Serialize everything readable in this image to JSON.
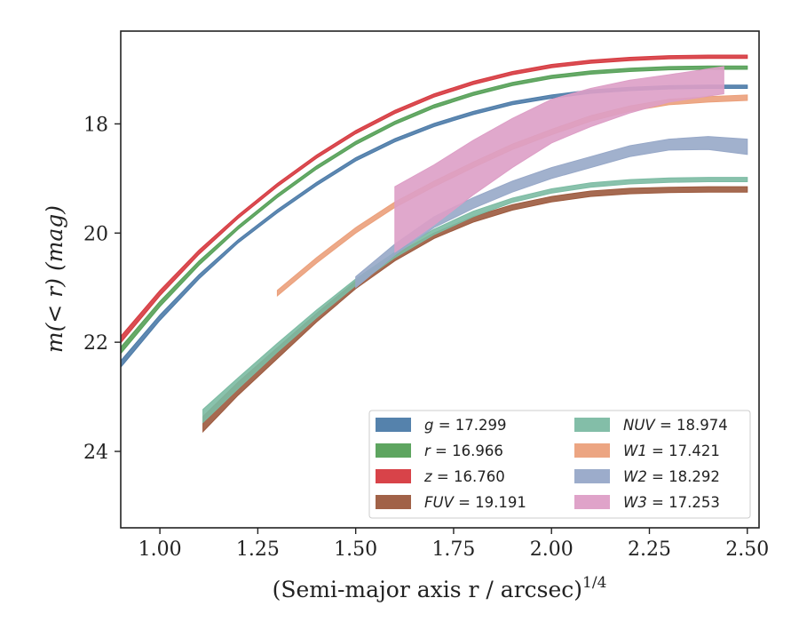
{
  "chart_data": {
    "type": "line",
    "xlabel": "(Semi-major axis r / arcsec)",
    "xlabel_exponent": "1/4",
    "ylabel": "m(< r) (mag)",
    "xlim": [
      0.9,
      2.53
    ],
    "ylim": [
      25.4,
      16.3
    ],
    "y_inverted": true,
    "x_ticks": [
      1.0,
      1.25,
      1.5,
      1.75,
      2.0,
      2.25,
      2.5
    ],
    "x_tick_labels": [
      "1.00",
      "1.25",
      "1.50",
      "1.75",
      "2.00",
      "2.25",
      "2.50"
    ],
    "y_ticks": [
      18,
      20,
      22,
      24
    ],
    "y_tick_labels": [
      "18",
      "20",
      "22",
      "24"
    ],
    "grid": false,
    "legend_placement": "lower-right",
    "legend_columns": 2,
    "series": [
      {
        "name": "g = 17.299",
        "label_var": "g",
        "label_value": "17.299",
        "color": "#4c7ba8",
        "x": [
          0.9,
          1.0,
          1.1,
          1.2,
          1.3,
          1.4,
          1.5,
          1.6,
          1.7,
          1.8,
          1.9,
          2.0,
          2.1,
          2.2,
          2.3,
          2.4,
          2.5
        ],
        "y": [
          22.4,
          21.55,
          20.8,
          20.15,
          19.6,
          19.1,
          18.65,
          18.3,
          18.02,
          17.8,
          17.62,
          17.5,
          17.41,
          17.36,
          17.33,
          17.32,
          17.32
        ],
        "half_width": [
          0.06,
          0.05,
          0.04,
          0.03,
          0.03,
          0.03,
          0.03,
          0.03,
          0.03,
          0.03,
          0.03,
          0.03,
          0.03,
          0.03,
          0.03,
          0.03,
          0.03
        ]
      },
      {
        "name": "r = 16.966",
        "label_var": "r",
        "label_value": "16.966",
        "color": "#55a057",
        "x": [
          0.9,
          1.0,
          1.1,
          1.2,
          1.3,
          1.4,
          1.5,
          1.6,
          1.7,
          1.8,
          1.9,
          2.0,
          2.1,
          2.2,
          2.3,
          2.4,
          2.5
        ],
        "y": [
          22.15,
          21.3,
          20.55,
          19.9,
          19.32,
          18.8,
          18.35,
          17.98,
          17.68,
          17.45,
          17.27,
          17.14,
          17.06,
          17.01,
          16.98,
          16.97,
          16.97
        ],
        "half_width": [
          0.06,
          0.05,
          0.04,
          0.03,
          0.03,
          0.03,
          0.03,
          0.03,
          0.03,
          0.03,
          0.03,
          0.03,
          0.03,
          0.03,
          0.03,
          0.03,
          0.03
        ]
      },
      {
        "name": "z = 16.760",
        "label_var": "z",
        "label_value": "16.760",
        "color": "#d6393f",
        "x": [
          0.9,
          1.0,
          1.1,
          1.2,
          1.3,
          1.4,
          1.5,
          1.6,
          1.7,
          1.8,
          1.9,
          2.0,
          2.1,
          2.2,
          2.3,
          2.4,
          2.5
        ],
        "y": [
          21.95,
          21.1,
          20.35,
          19.7,
          19.12,
          18.6,
          18.15,
          17.78,
          17.48,
          17.25,
          17.07,
          16.94,
          16.86,
          16.81,
          16.78,
          16.77,
          16.77
        ],
        "half_width": [
          0.06,
          0.05,
          0.04,
          0.03,
          0.03,
          0.03,
          0.03,
          0.03,
          0.03,
          0.03,
          0.03,
          0.03,
          0.03,
          0.03,
          0.03,
          0.03,
          0.03
        ]
      },
      {
        "name": "FUV = 19.191",
        "label_var": "FUV",
        "label_value": "19.191",
        "color": "#9c5a3e",
        "x": [
          1.11,
          1.2,
          1.3,
          1.4,
          1.5,
          1.6,
          1.7,
          1.8,
          1.9,
          2.0,
          2.1,
          2.2,
          2.3,
          2.4,
          2.5
        ],
        "y": [
          23.5,
          22.85,
          22.2,
          21.55,
          20.95,
          20.45,
          20.05,
          19.75,
          19.53,
          19.38,
          19.28,
          19.23,
          19.21,
          19.2,
          19.2
        ],
        "half_width": [
          0.14,
          0.12,
          0.1,
          0.08,
          0.07,
          0.06,
          0.05,
          0.05,
          0.05,
          0.05,
          0.05,
          0.05,
          0.05,
          0.05,
          0.05
        ]
      },
      {
        "name": "NUV = 18.974",
        "label_var": "NUV",
        "label_value": "18.974",
        "color": "#7cbba3",
        "x": [
          1.11,
          1.2,
          1.3,
          1.4,
          1.5,
          1.6,
          1.7,
          1.8,
          1.9,
          2.0,
          2.1,
          2.2,
          2.3,
          2.4,
          2.5
        ],
        "y": [
          23.35,
          22.75,
          22.1,
          21.48,
          20.9,
          20.4,
          19.98,
          19.65,
          19.4,
          19.23,
          19.12,
          19.06,
          19.03,
          19.02,
          19.02
        ],
        "half_width": [
          0.12,
          0.1,
          0.08,
          0.07,
          0.06,
          0.05,
          0.05,
          0.05,
          0.04,
          0.04,
          0.04,
          0.04,
          0.04,
          0.04,
          0.04
        ]
      },
      {
        "name": "W1 = 17.421",
        "label_var": "W1",
        "label_value": "17.421",
        "color": "#eba07b",
        "x": [
          1.3,
          1.4,
          1.5,
          1.6,
          1.7,
          1.8,
          1.9,
          2.0,
          2.1,
          2.2,
          2.3,
          2.4,
          2.5
        ],
        "y": [
          21.1,
          20.5,
          19.95,
          19.48,
          19.1,
          18.75,
          18.42,
          18.15,
          17.9,
          17.72,
          17.6,
          17.55,
          17.52
        ],
        "half_width": [
          0.05,
          0.05,
          0.05,
          0.05,
          0.05,
          0.05,
          0.05,
          0.05,
          0.05,
          0.05,
          0.05,
          0.05,
          0.05
        ]
      },
      {
        "name": "W2 = 18.292",
        "label_var": "W2",
        "label_value": "18.292",
        "color": "#97a8c8",
        "x": [
          1.5,
          1.6,
          1.7,
          1.8,
          1.9,
          2.0,
          2.1,
          2.2,
          2.3,
          2.4,
          2.5
        ],
        "y": [
          20.9,
          20.3,
          19.8,
          19.45,
          19.15,
          18.9,
          18.7,
          18.5,
          18.38,
          18.35,
          18.42
        ],
        "half_width": [
          0.1,
          0.1,
          0.1,
          0.1,
          0.1,
          0.1,
          0.1,
          0.1,
          0.1,
          0.12,
          0.14
        ]
      },
      {
        "name": "W3 = 17.253",
        "label_var": "W3",
        "label_value": "17.253",
        "color": "#dd9ec6",
        "x": [
          1.6,
          1.7,
          1.8,
          1.9,
          2.0,
          2.1,
          2.2,
          2.3,
          2.44
        ],
        "y": [
          19.75,
          19.3,
          18.8,
          18.35,
          17.95,
          17.7,
          17.5,
          17.35,
          17.2
        ],
        "half_width": [
          0.6,
          0.55,
          0.5,
          0.45,
          0.4,
          0.35,
          0.3,
          0.25,
          0.25
        ]
      }
    ]
  }
}
